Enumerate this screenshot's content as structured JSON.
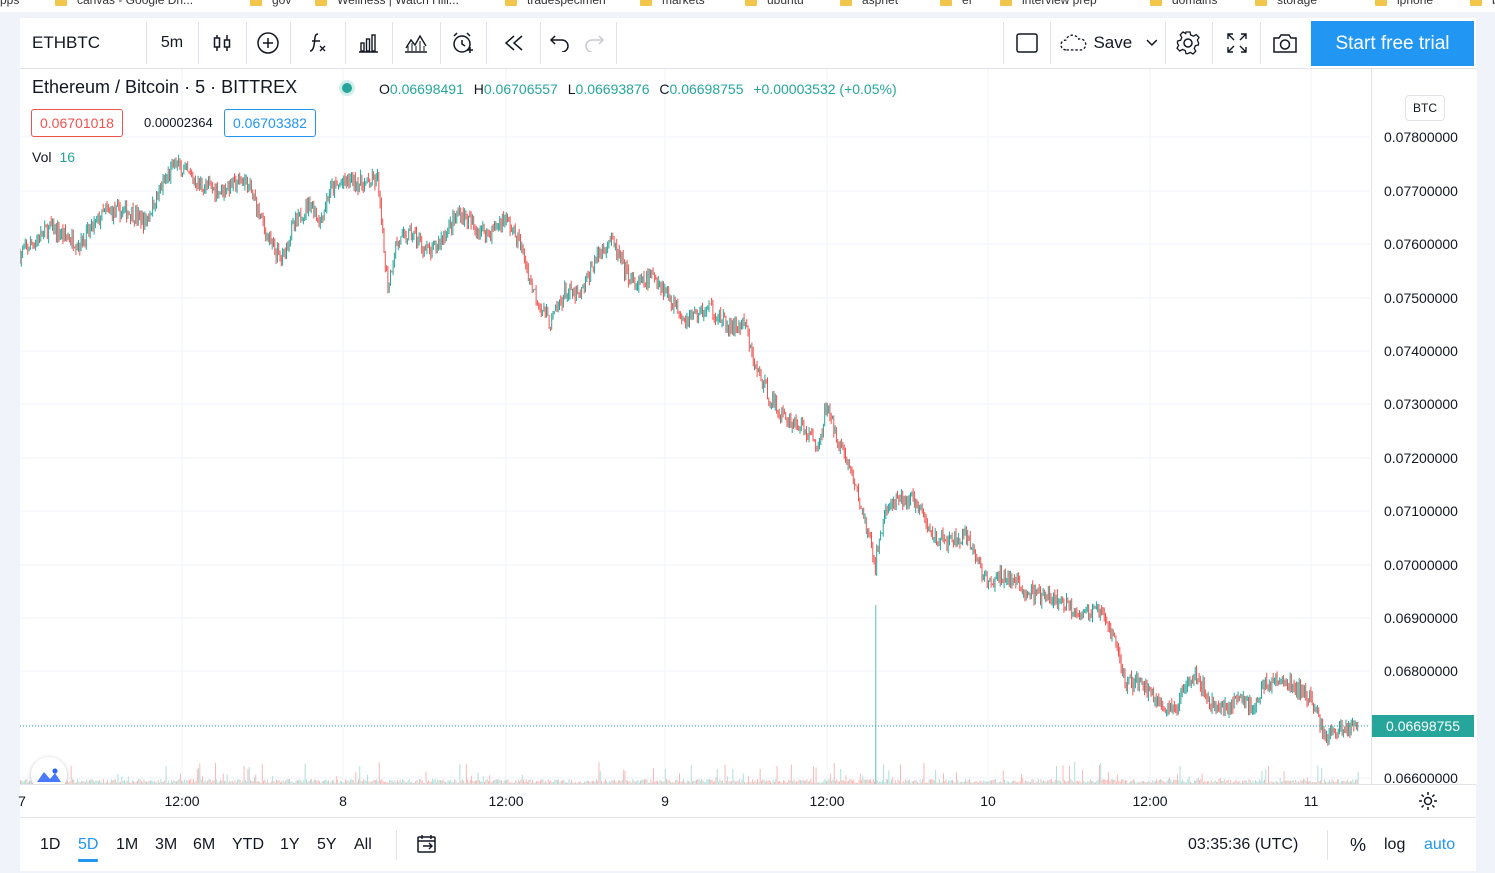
{
  "bookmarks": [
    "pps",
    "canvas - Google Dri...",
    "gov",
    "Wellness | Watch Hill...",
    "tradespecimen",
    "markets",
    "ubuntu",
    "aspnet",
    "ef",
    "interview prep",
    "domains",
    "storage",
    "iphone",
    "bo"
  ],
  "toolbar": {
    "symbol": "ETHBTC",
    "interval": "5m",
    "save_label": "Save",
    "cta_label": "Start free trial",
    "icons": [
      "candles-icon",
      "add-compare-icon",
      "indicators-icon",
      "financials-icon",
      "templates-icon",
      "alert-icon",
      "replay-icon",
      "undo-icon",
      "redo-icon",
      "layout-icon",
      "cloud-icon",
      "chevron-down-icon",
      "settings-icon",
      "fullscreen-icon",
      "camera-icon"
    ]
  },
  "legend": {
    "title": "Ethereum / Bitcoin · 5 · BITTREX",
    "o_label": "O",
    "o": "0.06698491",
    "h_label": "H",
    "h": "0.06706557",
    "l_label": "L",
    "l": "0.06693876",
    "c_label": "C",
    "c": "0.06698755",
    "change": "+0.00003532 (+0.05%)",
    "bid": "0.06701018",
    "spread": "0.00002364",
    "ask": "0.06703382",
    "vol_label": "Vol",
    "vol_value": "16"
  },
  "price_scale": {
    "currency": "BTC",
    "ticks": [
      "0.07800000",
      "0.07700000",
      "0.07600000",
      "0.07500000",
      "0.07400000",
      "0.07300000",
      "0.07200000",
      "0.07100000",
      "0.07000000",
      "0.06900000",
      "0.06800000",
      "0.06600000"
    ],
    "last_price": "0.06698755"
  },
  "time_scale": {
    "ticks": [
      "7",
      "12:00",
      "8",
      "12:00",
      "9",
      "12:00",
      "10",
      "12:00",
      "11"
    ]
  },
  "bottom": {
    "ranges": [
      "1D",
      "5D",
      "1M",
      "3M",
      "6M",
      "YTD",
      "1Y",
      "5Y",
      "All"
    ],
    "active_range": "5D",
    "clock": "03:35:36 (UTC)",
    "percent": "%",
    "log": "log",
    "auto": "auto"
  },
  "colors": {
    "up": "#26a69a",
    "down": "#ef5350",
    "accent": "#2196f3",
    "grid": "#f0f3fa"
  },
  "chart_data": {
    "type": "candlestick",
    "interval": "5m",
    "y_range": [
      0.0655,
      0.0783
    ],
    "path_points": [
      [
        0,
        0.0758
      ],
      [
        30,
        0.0763
      ],
      [
        60,
        0.076
      ],
      [
        85,
        0.0766
      ],
      [
        110,
        0.0766
      ],
      [
        125,
        0.0764
      ],
      [
        140,
        0.077
      ],
      [
        155,
        0.0775
      ],
      [
        180,
        0.0771
      ],
      [
        200,
        0.077
      ],
      [
        225,
        0.0772
      ],
      [
        235,
        0.0768
      ],
      [
        250,
        0.076
      ],
      [
        262,
        0.0757
      ],
      [
        270,
        0.0762
      ],
      [
        290,
        0.0768
      ],
      [
        300,
        0.0764
      ],
      [
        310,
        0.077
      ],
      [
        330,
        0.0772
      ],
      [
        345,
        0.0771
      ],
      [
        358,
        0.0772
      ],
      [
        362,
        0.0762
      ],
      [
        368,
        0.0752
      ],
      [
        376,
        0.076
      ],
      [
        392,
        0.0762
      ],
      [
        410,
        0.0758
      ],
      [
        425,
        0.0762
      ],
      [
        440,
        0.0766
      ],
      [
        455,
        0.0763
      ],
      [
        470,
        0.0762
      ],
      [
        485,
        0.0765
      ],
      [
        500,
        0.076
      ],
      [
        512,
        0.0752
      ],
      [
        522,
        0.0748
      ],
      [
        530,
        0.0745
      ],
      [
        545,
        0.0751
      ],
      [
        560,
        0.075
      ],
      [
        575,
        0.0757
      ],
      [
        590,
        0.0761
      ],
      [
        598,
        0.0758
      ],
      [
        605,
        0.0755
      ],
      [
        615,
        0.0752
      ],
      [
        635,
        0.0754
      ],
      [
        650,
        0.075
      ],
      [
        665,
        0.0746
      ],
      [
        690,
        0.0748
      ],
      [
        710,
        0.0744
      ],
      [
        725,
        0.0745
      ],
      [
        733,
        0.0738
      ],
      [
        745,
        0.0733
      ],
      [
        760,
        0.0728
      ],
      [
        780,
        0.0726
      ],
      [
        800,
        0.0722
      ],
      [
        805,
        0.073
      ],
      [
        815,
        0.0725
      ],
      [
        830,
        0.0718
      ],
      [
        845,
        0.0708
      ],
      [
        855,
        0.07
      ],
      [
        865,
        0.071
      ],
      [
        880,
        0.0712
      ],
      [
        895,
        0.0712
      ],
      [
        910,
        0.0706
      ],
      [
        925,
        0.0704
      ],
      [
        945,
        0.0705
      ],
      [
        955,
        0.0702
      ],
      [
        968,
        0.0696
      ],
      [
        985,
        0.0698
      ],
      [
        1005,
        0.0695
      ],
      [
        1020,
        0.0694
      ],
      [
        1040,
        0.0693
      ],
      [
        1060,
        0.0691
      ],
      [
        1080,
        0.0691
      ],
      [
        1095,
        0.0686
      ],
      [
        1105,
        0.0678
      ],
      [
        1120,
        0.0678
      ],
      [
        1140,
        0.0674
      ],
      [
        1155,
        0.0672
      ],
      [
        1165,
        0.0678
      ],
      [
        1175,
        0.068
      ],
      [
        1190,
        0.0674
      ],
      [
        1205,
        0.0673
      ],
      [
        1220,
        0.0675
      ],
      [
        1235,
        0.0673
      ],
      [
        1245,
        0.0678
      ],
      [
        1260,
        0.0678
      ],
      [
        1275,
        0.0677
      ],
      [
        1290,
        0.0675
      ],
      [
        1305,
        0.0668
      ],
      [
        1320,
        0.0669
      ],
      [
        1338,
        0.067
      ]
    ],
    "volume_spike_index": 855
  }
}
